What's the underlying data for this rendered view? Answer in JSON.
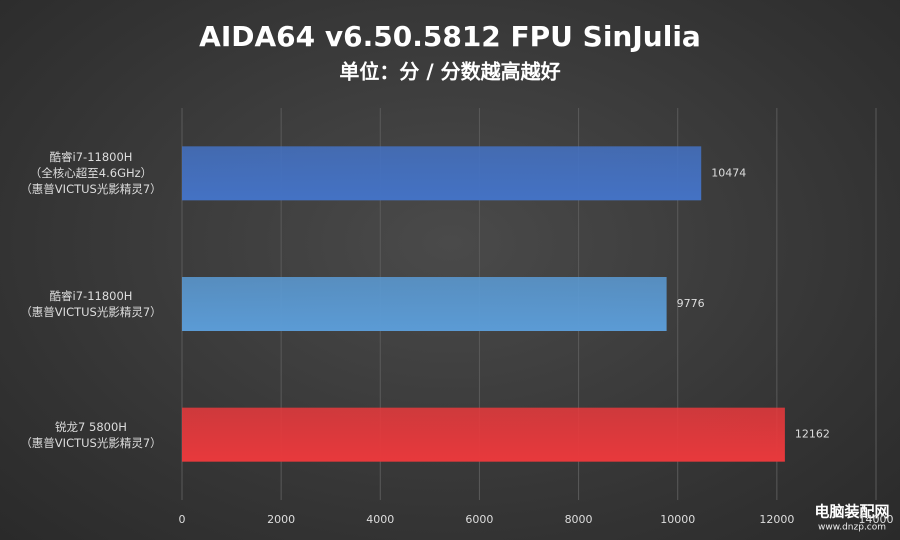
{
  "chart_data": {
    "type": "hbar",
    "title": "AIDA64 v6.50.5812 FPU SinJulia",
    "subtitle": "单位：分 / 分数越高越好",
    "categories": [
      "酷睿i7-11800H\n（全核心超至4.6GHz）\n（惠普VICTUS光影精灵7）",
      "酷睿i7-11800H\n（惠普VICTUS光影精灵7）",
      "锐龙7 5800H\n（惠普VICTUS光影精灵7）"
    ],
    "values": [
      10474,
      9776,
      12162
    ],
    "colors": [
      "#4472c4",
      "#5b9bd5",
      "#e8393c"
    ],
    "xlim": [
      0,
      14000
    ],
    "xticks": [
      0,
      2000,
      4000,
      6000,
      8000,
      10000,
      12000,
      14000
    ],
    "grid": true
  },
  "watermark": {
    "name": "电脑装配网",
    "url": "www.dnzp.com"
  }
}
